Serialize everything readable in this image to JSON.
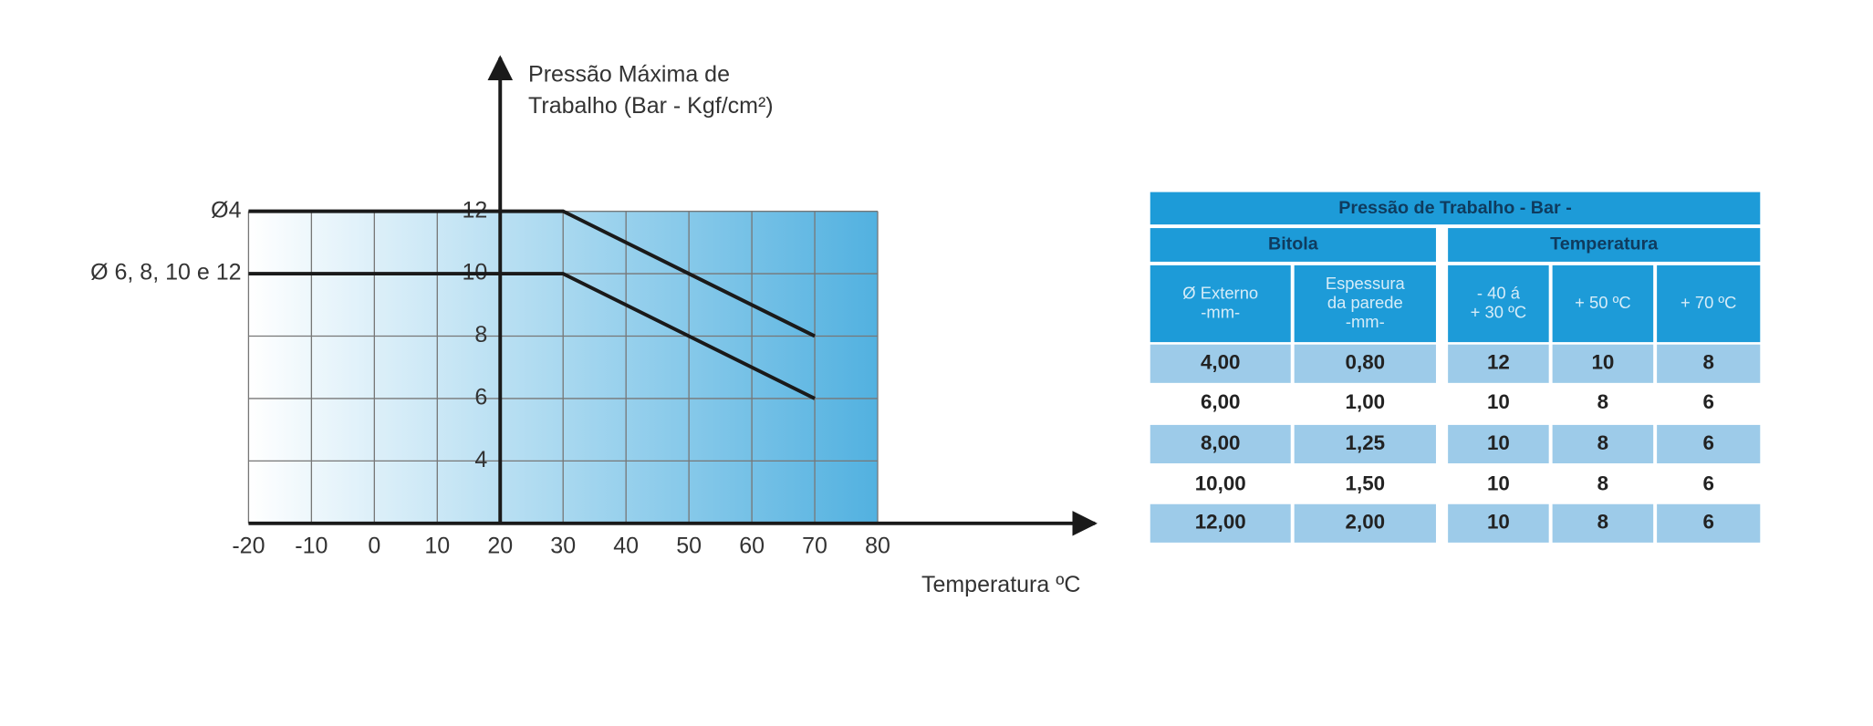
{
  "chart_data": {
    "type": "line",
    "ylabel": [
      "Pressão Máxima de",
      "Trabalho (Bar - Kgf/cm²)"
    ],
    "xlabel": "Temperatura  ºC",
    "x": [
      -20,
      30,
      70
    ],
    "series": [
      {
        "name": "Ø4",
        "color": "#1a1a1a",
        "values": [
          12,
          12,
          8
        ]
      },
      {
        "name": "Ø 6, 8, 10 e 12",
        "color": "#1a1a1a",
        "values": [
          10,
          10,
          6
        ]
      }
    ],
    "xlim": [
      -20,
      80
    ],
    "xticks": [
      -20,
      -10,
      0,
      10,
      20,
      30,
      40,
      50,
      60,
      70,
      80
    ],
    "ylim": [
      2,
      12
    ],
    "yticks": [
      4,
      6,
      8,
      10,
      12
    ],
    "yaxis_position": 20,
    "grid": true
  },
  "table": {
    "title": "Pressão de Trabalho  - Bar -",
    "groups": [
      "Bitola",
      "Temperatura"
    ],
    "columns": [
      [
        "Ø Externo",
        "-mm-"
      ],
      [
        "Espessura",
        "da parede",
        "-mm-"
      ],
      [
        "- 40  á",
        "+ 30 ºC"
      ],
      [
        "+ 50 ºC"
      ],
      [
        "+ 70 ºC"
      ]
    ],
    "rows": [
      [
        "4,00",
        "0,80",
        "12",
        "10",
        "8"
      ],
      [
        "6,00",
        "1,00",
        "10",
        "8",
        "6"
      ],
      [
        "8,00",
        "1,25",
        "10",
        "8",
        "6"
      ],
      [
        "10,00",
        "1,50",
        "10",
        "8",
        "6"
      ],
      [
        "12,00",
        "2,00",
        "10",
        "8",
        "6"
      ]
    ]
  }
}
